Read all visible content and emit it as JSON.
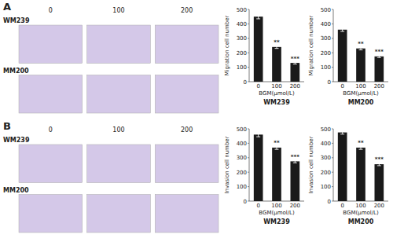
{
  "chart_data": [
    {
      "type": "image_grid",
      "title": "A",
      "categories": [
        "0",
        "100",
        "200"
      ],
      "series": [
        {
          "name": "WM239",
          "color": "#d4c8e8"
        },
        {
          "name": "MM200",
          "color": "#d4c8e8"
        }
      ]
    },
    {
      "type": "bar",
      "title": "WM239",
      "categories": [
        "0",
        "100",
        "200"
      ],
      "values": [
        450,
        240,
        130
      ],
      "errors": [
        15,
        10,
        8
      ],
      "color": "#1a1a1a",
      "xlabel": "BGM(μmol/L)",
      "ylabel": "Migration cell number",
      "ylim": [
        0,
        500
      ],
      "yticks": [
        0,
        100,
        200,
        300,
        400,
        500
      ],
      "annotations": [
        {
          "category": "100",
          "text": "**"
        },
        {
          "category": "200",
          "text": "***"
        }
      ]
    },
    {
      "type": "bar",
      "title": "MM200",
      "categories": [
        "0",
        "100",
        "200"
      ],
      "values": [
        360,
        230,
        175
      ],
      "errors": [
        12,
        10,
        8
      ],
      "color": "#1a1a1a",
      "xlabel": "BGM(μmol/L)",
      "ylabel": "Migration cell number",
      "ylim": [
        0,
        500
      ],
      "yticks": [
        0,
        100,
        200,
        300,
        400,
        500
      ],
      "annotations": [
        {
          "category": "100",
          "text": "**"
        },
        {
          "category": "200",
          "text": "***"
        }
      ]
    },
    {
      "type": "image_grid",
      "title": "B",
      "categories": [
        "0",
        "100",
        "200"
      ],
      "series": [
        {
          "name": "WM239",
          "color": "#d4c8e8"
        },
        {
          "name": "MM200",
          "color": "#d4c8e8"
        }
      ]
    },
    {
      "type": "bar",
      "title": "WM239",
      "categories": [
        "0",
        "100",
        "200"
      ],
      "values": [
        460,
        370,
        275
      ],
      "errors": [
        15,
        12,
        10
      ],
      "color": "#1a1a1a",
      "xlabel": "BGM(μmol/L)",
      "ylabel": "Invasion cell number",
      "ylim": [
        0,
        500
      ],
      "yticks": [
        0,
        100,
        200,
        300,
        400,
        500
      ],
      "annotations": [
        {
          "category": "100",
          "text": "**"
        },
        {
          "category": "200",
          "text": "***"
        }
      ]
    },
    {
      "type": "bar",
      "title": "MM200",
      "categories": [
        "0",
        "100",
        "200"
      ],
      "values": [
        475,
        370,
        255
      ],
      "errors": [
        12,
        12,
        10
      ],
      "color": "#1a1a1a",
      "xlabel": "BGM(μmol/L)",
      "ylabel": "Invasion cell number",
      "ylim": [
        0,
        500
      ],
      "yticks": [
        0,
        100,
        200,
        300,
        400,
        500
      ],
      "annotations": [
        {
          "category": "100",
          "text": "**"
        },
        {
          "category": "200",
          "text": "***"
        }
      ]
    }
  ]
}
